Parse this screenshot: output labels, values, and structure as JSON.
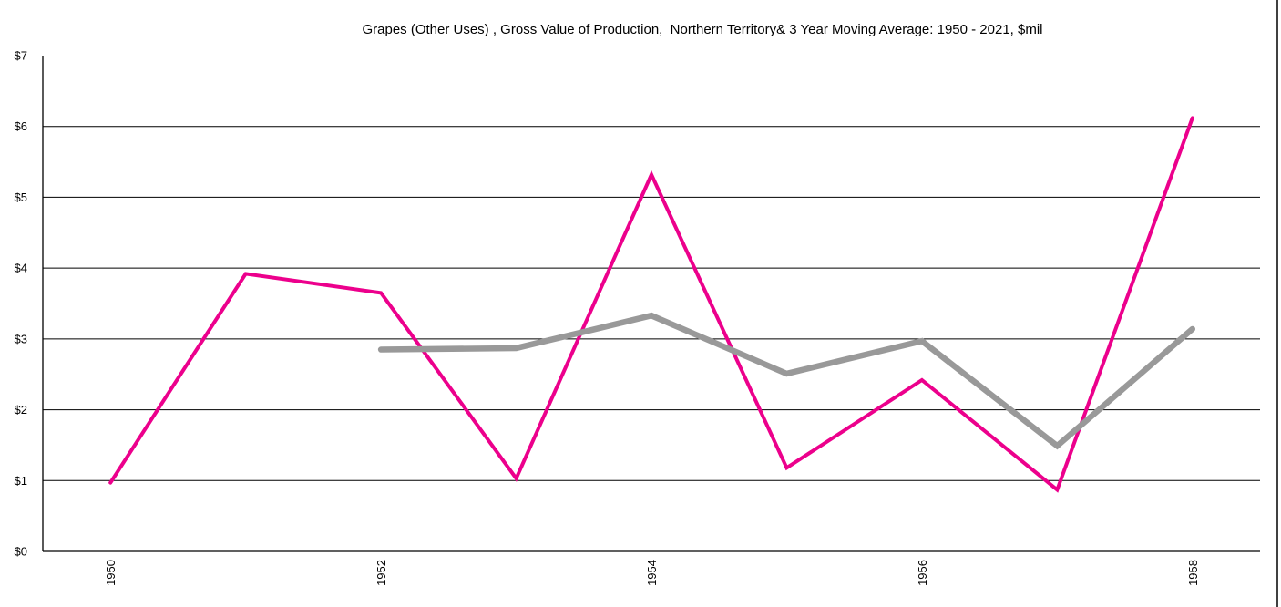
{
  "chart_data": {
    "type": "line",
    "title": "Grapes (Other Uses) , Gross Value of Production,  Northern Territory& 3 Year Moving Average: 1950 - 2021, $mil",
    "xlabel": "",
    "ylabel": "",
    "x": [
      1950,
      1951,
      1952,
      1953,
      1954,
      1955,
      1956,
      1957,
      1958
    ],
    "series": [
      {
        "name": "Gross Value of Production",
        "color": "#EC008C",
        "stroke_width": 4,
        "values": [
          0.97,
          3.92,
          3.65,
          1.03,
          5.32,
          1.18,
          2.42,
          0.87,
          6.12
        ]
      },
      {
        "name": "3 Year Moving Average",
        "color": "#999999",
        "stroke_width": 6.5,
        "values": [
          null,
          null,
          2.85,
          2.87,
          3.33,
          2.51,
          2.97,
          1.49,
          3.14
        ]
      }
    ],
    "ylim": [
      0,
      7
    ],
    "ytick_labels": [
      "$0",
      "$1",
      "$2",
      "$3",
      "$4",
      "$5",
      "$6",
      "$7"
    ],
    "xtick_labels": [
      "1950",
      "1952",
      "1954",
      "1956",
      "1958"
    ],
    "xtick_rotation": -90,
    "grid": "horizontal",
    "legend_position": "none",
    "axis_color": "#000000",
    "background_color": "#ffffff"
  }
}
